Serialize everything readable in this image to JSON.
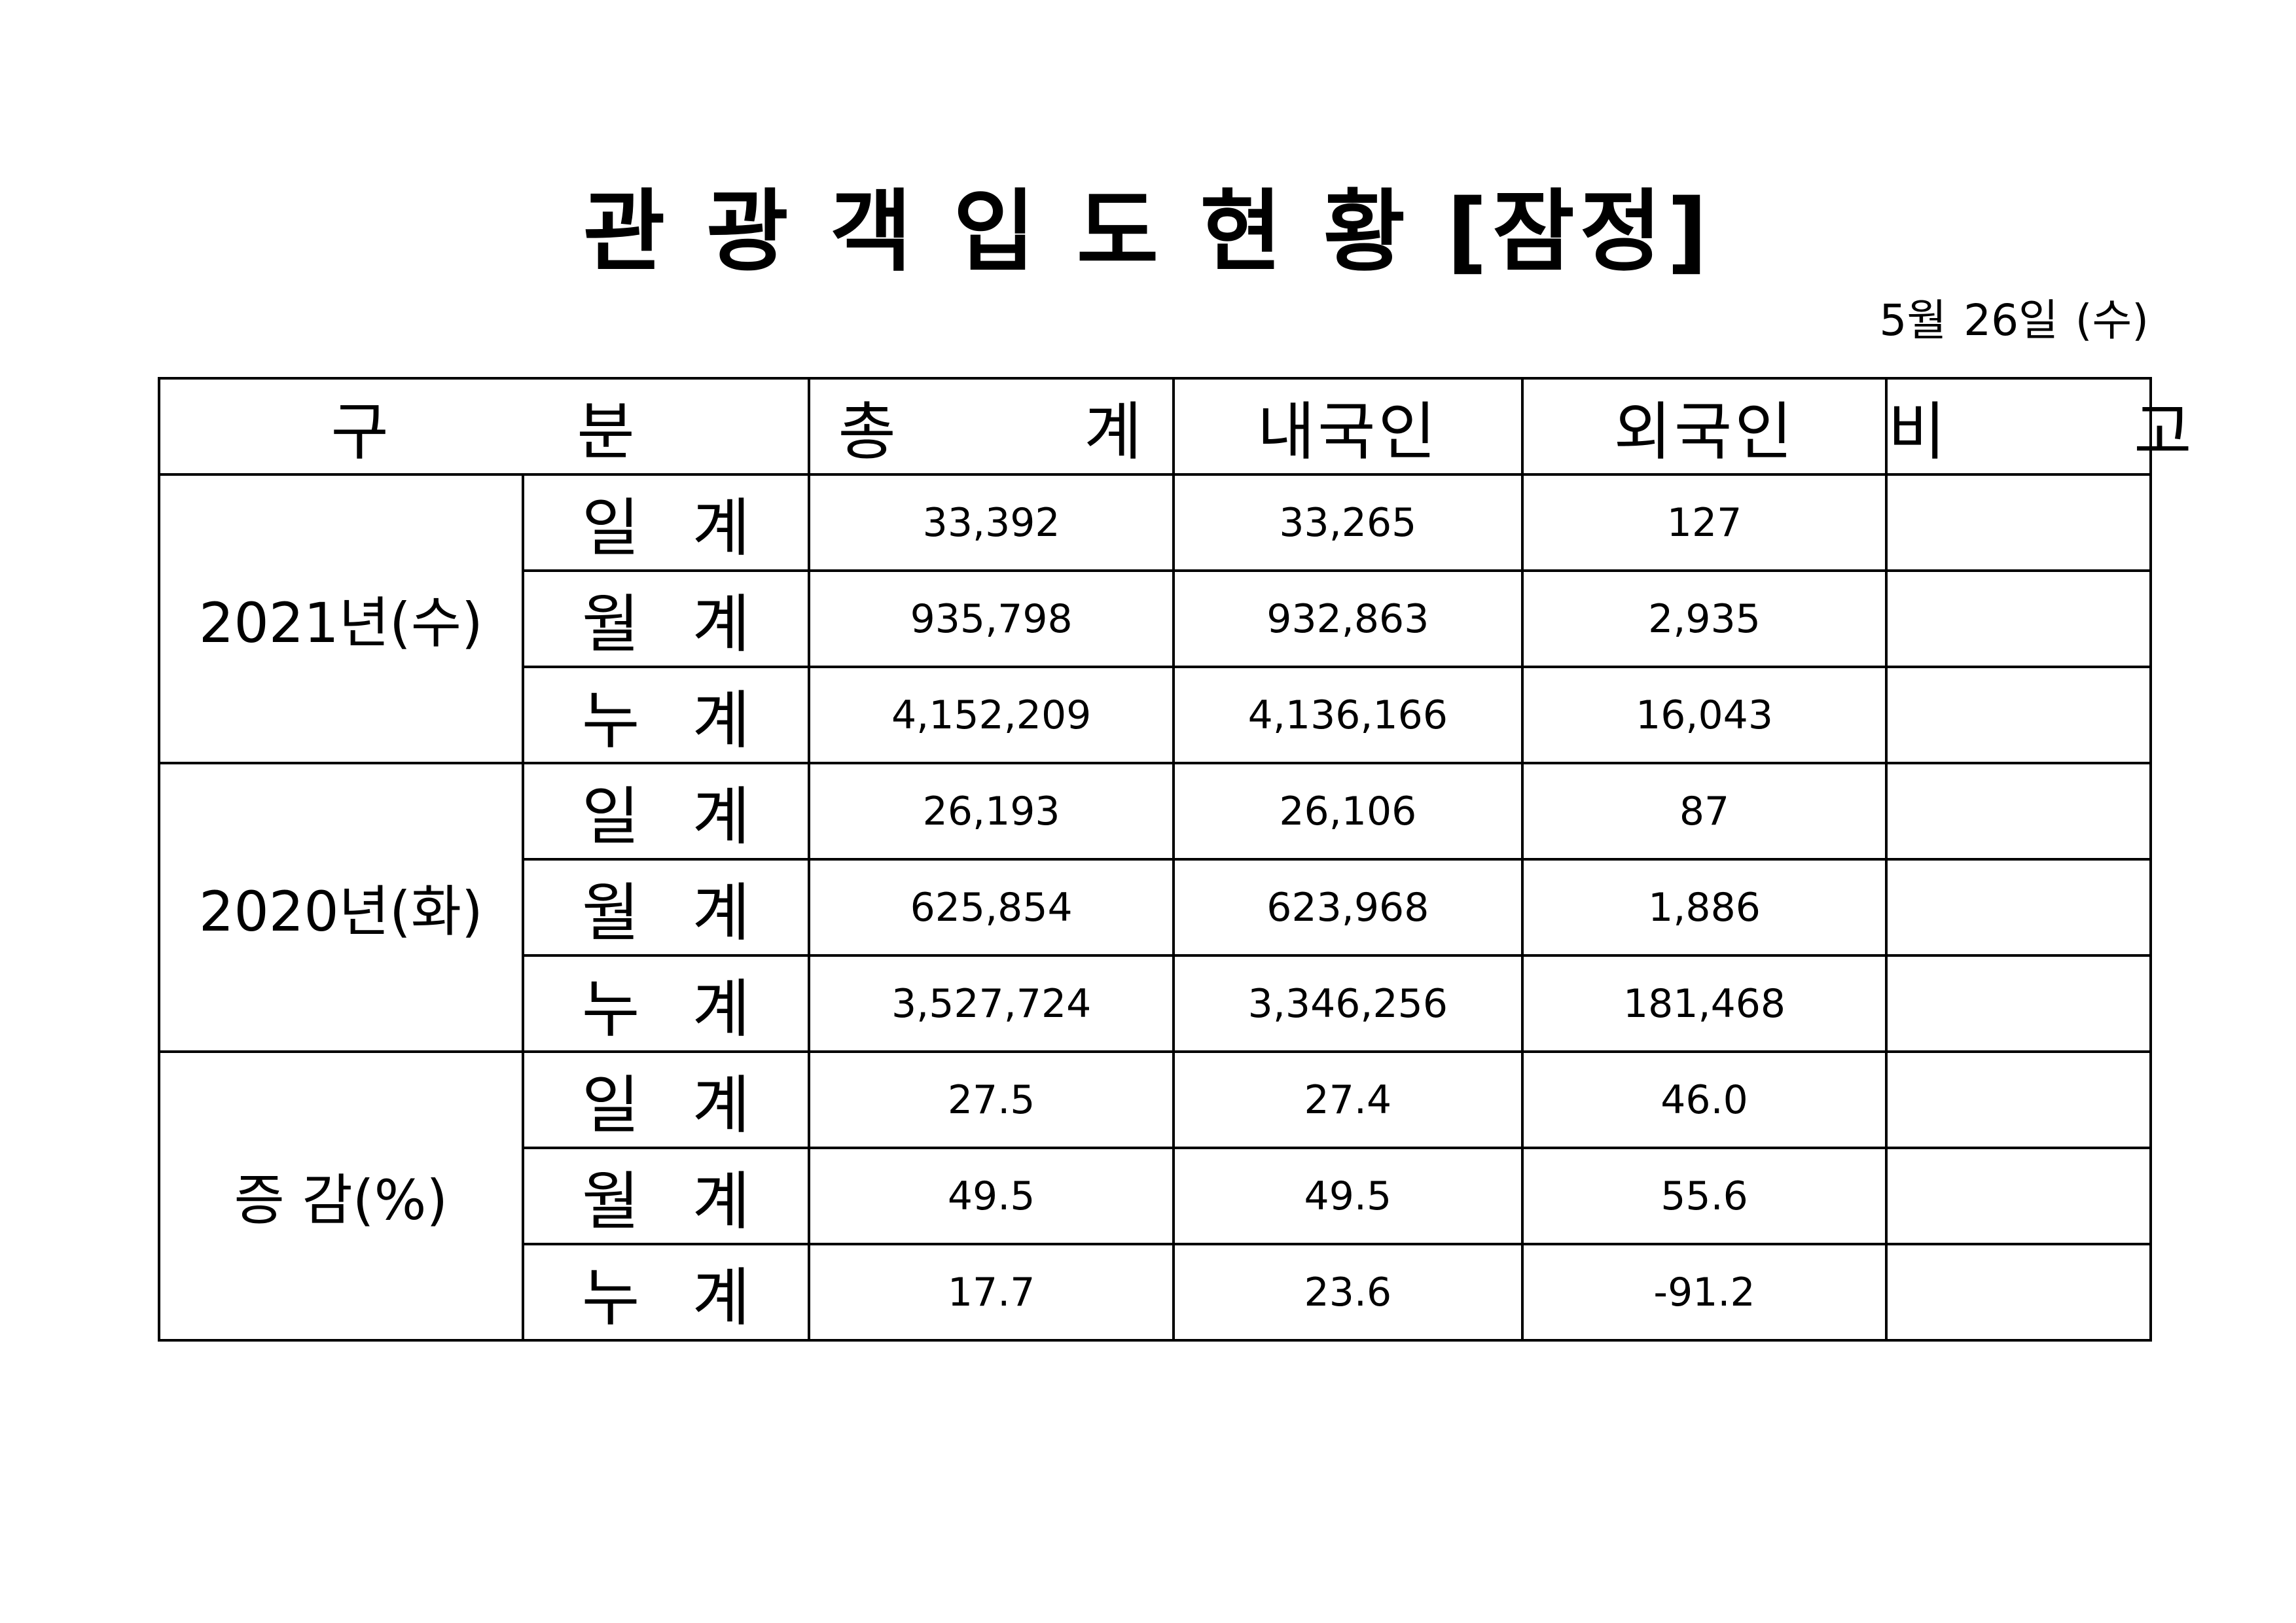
{
  "title": "관 광 객 입 도 현 황 [잠정]",
  "date": {
    "month_day": "5월",
    "day": "26일",
    "weekday": "(수)"
  },
  "table": {
    "headers": [
      "구   분",
      "총   계",
      "내국인",
      "외국인",
      "비   고"
    ],
    "groups": [
      {
        "label": "2021년(수)",
        "rows": [
          {
            "label": "일 계",
            "total": "33,392",
            "domestic": "33,265",
            "foreign": "127",
            "note": ""
          },
          {
            "label": "월 계",
            "total": "935,798",
            "domestic": "932,863",
            "foreign": "2,935",
            "note": ""
          },
          {
            "label": "누 계",
            "total": "4,152,209",
            "domestic": "4,136,166",
            "foreign": "16,043",
            "note": ""
          }
        ]
      },
      {
        "label": "2020년(화)",
        "rows": [
          {
            "label": "일 계",
            "total": "26,193",
            "domestic": "26,106",
            "foreign": "87",
            "note": ""
          },
          {
            "label": "월 계",
            "total": "625,854",
            "domestic": "623,968",
            "foreign": "1,886",
            "note": ""
          },
          {
            "label": "누 계",
            "total": "3,527,724",
            "domestic": "3,346,256",
            "foreign": "181,468",
            "note": ""
          }
        ]
      },
      {
        "label": "증 감(%)",
        "rows": [
          {
            "label": "일 계",
            "total": "27.5",
            "domestic": "27.4",
            "foreign": "46.0",
            "note": ""
          },
          {
            "label": "월 계",
            "total": "49.5",
            "domestic": "49.5",
            "foreign": "55.6",
            "note": ""
          },
          {
            "label": "누 계",
            "total": "17.7",
            "domestic": "23.6",
            "foreign": "-91.2",
            "note": ""
          }
        ]
      }
    ]
  }
}
